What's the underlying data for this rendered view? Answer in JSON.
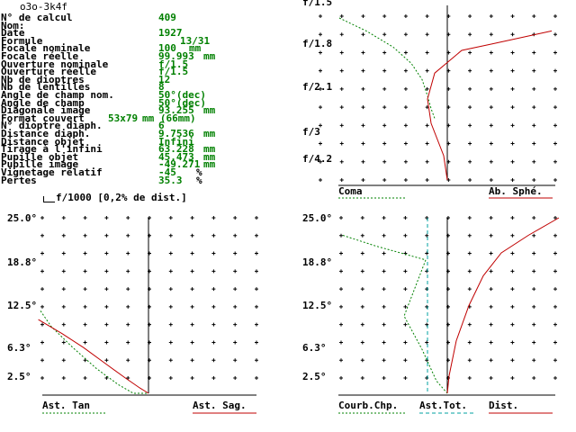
{
  "window": {
    "title": "o3o-3k4f"
  },
  "specs": [
    {
      "label": "N° de calcul",
      "value": "409",
      "unit": ""
    },
    {
      "label": "Nom:",
      "value": "",
      "unit": ""
    },
    {
      "label": "Date",
      "value": "1927",
      "unit": ""
    },
    {
      "label": "Formule",
      "value": "13/31",
      "unit": ""
    },
    {
      "label": "Focale nominale",
      "value": "100",
      "unit": "mm"
    },
    {
      "label": "Focale réelle",
      "value": "99.993",
      "unit": "mm"
    },
    {
      "label": "Ouverture nominale",
      "value": "f/1.5",
      "unit": ""
    },
    {
      "label": "Ouverture réelle",
      "value": "f/1.5",
      "unit": ""
    },
    {
      "label": "Nb de dioptres",
      "value": "12",
      "unit": ""
    },
    {
      "label": "Nb de lentilles",
      "value": "8",
      "unit": ""
    },
    {
      "label": "Angle de champ nom.",
      "value": "50°(dec)",
      "unit": ""
    },
    {
      "label": "Angle de champ",
      "value": "50°(dec)",
      "unit": ""
    },
    {
      "label": "Diagonale image",
      "value": "93.255",
      "unit": "mm"
    },
    {
      "label": "Format couvert",
      "value": "53x79",
      "unit": "mm (66mm)"
    },
    {
      "label": "N° dioptre diaph.",
      "value": "6",
      "unit": ""
    },
    {
      "label": "Distance diaph.",
      "value": "9.7536",
      "unit": "mm"
    },
    {
      "label": "Distance objet",
      "value": "Infini",
      "unit": ""
    },
    {
      "label": "Tirage à l'infini",
      "value": "63.228",
      "unit": "mm"
    },
    {
      "label": "Pupille objet",
      "value": "45.473",
      "unit": "mm"
    },
    {
      "label": "Pupille image",
      "value": "-49.271",
      "unit": "mm"
    },
    {
      "label": "Vignetage relatif",
      "value": "-45",
      "unit": "%"
    },
    {
      "label": "Pertes",
      "value": "35.3",
      "unit": "%"
    }
  ],
  "scale_note": "f/1000 [0,2% de dist.]",
  "colors": {
    "green": "#008000",
    "red": "#c00000",
    "cyan": "#00a0a0",
    "black": "#000000"
  },
  "chart_data": [
    {
      "type": "line",
      "panel": "aperture",
      "tick_labels": [
        "f/1.5",
        "f/1.8",
        "f/2.1",
        "f/3",
        "f/4.2"
      ],
      "series": [
        {
          "name": "Coma",
          "style": "dotted",
          "color": "#008000",
          "points": [
            [
              -6,
              0.0
            ],
            [
              -4.5,
              0.08
            ],
            [
              -3,
              0.18
            ],
            [
              -2,
              0.28
            ],
            [
              -1.4,
              0.38
            ],
            [
              -1.1,
              0.48
            ],
            [
              -0.9,
              0.56
            ],
            [
              -0.7,
              0.62
            ]
          ]
        },
        {
          "name": "Ab. Sphé.",
          "style": "solid",
          "color": "#c00000",
          "points": [
            [
              5.8,
              0.08
            ],
            [
              2.5,
              0.16
            ],
            [
              0.8,
              0.2
            ],
            [
              -0.7,
              0.34
            ],
            [
              -1.1,
              0.5
            ],
            [
              -0.9,
              0.65
            ],
            [
              -0.2,
              0.85
            ],
            [
              0,
              1.0
            ]
          ]
        }
      ],
      "legend": [
        "Coma",
        "Ab. Sphé."
      ]
    },
    {
      "type": "line",
      "panel": "field-left",
      "tick_labels": [
        "25.0°",
        "18.8°",
        "12.5°",
        "6.3°",
        "2.5°"
      ],
      "series": [
        {
          "name": "Ast. Tan",
          "style": "dotted",
          "color": "#008000",
          "points": [
            [
              -5.0,
              0.53
            ],
            [
              -4.5,
              0.62
            ],
            [
              -3.5,
              0.74
            ],
            [
              -2.4,
              0.86
            ],
            [
              -1.4,
              0.95
            ],
            [
              -0.7,
              1.0
            ],
            [
              0,
              1.0
            ]
          ]
        },
        {
          "name": "Ast. Sag.",
          "style": "solid",
          "color": "#c00000",
          "points": [
            [
              -5.1,
              0.58
            ],
            [
              -4.0,
              0.66
            ],
            [
              -3.0,
              0.74
            ],
            [
              -2.0,
              0.83
            ],
            [
              -1.1,
              0.91
            ],
            [
              -0.4,
              0.97
            ],
            [
              0,
              1.0
            ]
          ]
        }
      ],
      "legend": [
        "Ast. Tan",
        "Ast. Sag."
      ]
    },
    {
      "type": "line",
      "panel": "field-right",
      "tick_labels": [
        "25.0°",
        "18.8°",
        "12.5°",
        "6.3°",
        "2.5°"
      ],
      "series": [
        {
          "name": "Courb.Chp.",
          "style": "dotted",
          "color": "#008000",
          "points": [
            [
              -5.8,
              0.1
            ],
            [
              -4.0,
              0.16
            ],
            [
              -1.2,
              0.24
            ],
            [
              -2.4,
              0.56
            ],
            [
              -1.4,
              0.75
            ],
            [
              -0.6,
              0.93
            ],
            [
              0,
              1.0
            ]
          ]
        },
        {
          "name": "Ast.Tot.",
          "style": "dashed",
          "color": "#00a0a0",
          "points": [
            [
              -1.1,
              0.0
            ],
            [
              -1.1,
              1.0
            ]
          ]
        },
        {
          "name": "Dist.",
          "style": "solid",
          "color": "#c00000",
          "points": [
            [
              6.2,
              0.0
            ],
            [
              4.5,
              0.1
            ],
            [
              3.0,
              0.2
            ],
            [
              2.0,
              0.33
            ],
            [
              1.2,
              0.5
            ],
            [
              0.5,
              0.7
            ],
            [
              0.1,
              0.9
            ],
            [
              0,
              1.0
            ]
          ]
        }
      ],
      "legend": [
        "Courb.Chp.",
        "Ast.Tot.",
        "Dist."
      ]
    }
  ]
}
